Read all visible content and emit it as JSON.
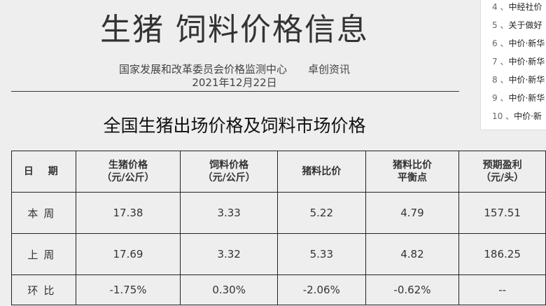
{
  "header": {
    "title": "生猪 饲料价格信息",
    "source": "国家发展和改革委员会价格监测中心　　卓创资讯",
    "date": "2021年12月22日"
  },
  "subtitle": "全国生猪出场价格及饲料市场价格",
  "table": {
    "headers": [
      "日 期",
      "生猪价格\n（元/公斤）",
      "饲料价格\n（元/公斤）",
      "猪料比价",
      "猪料比价\n平衡点",
      "预期盈利\n（元/头）"
    ],
    "rows": [
      [
        "本周",
        "17.38",
        "3.33",
        "5.22",
        "4.79",
        "157.51"
      ],
      [
        "上周",
        "17.69",
        "3.32",
        "5.33",
        "4.82",
        "186.25"
      ],
      [
        "环比",
        "-1.75%",
        "0.30%",
        "-2.06%",
        "-0.62%",
        "--"
      ]
    ]
  },
  "sidebar": {
    "items": [
      {
        "num": "4 、",
        "text": "中经社价"
      },
      {
        "num": "5 、",
        "text": "关于做好"
      },
      {
        "num": "6 、",
        "text": "中价·新华"
      },
      {
        "num": "7 、",
        "text": "中价·新华"
      },
      {
        "num": "8 、",
        "text": "中价·新华"
      },
      {
        "num": "9 、",
        "text": "中价·新华"
      },
      {
        "num": "10 、",
        "text": "中价·新"
      }
    ]
  }
}
